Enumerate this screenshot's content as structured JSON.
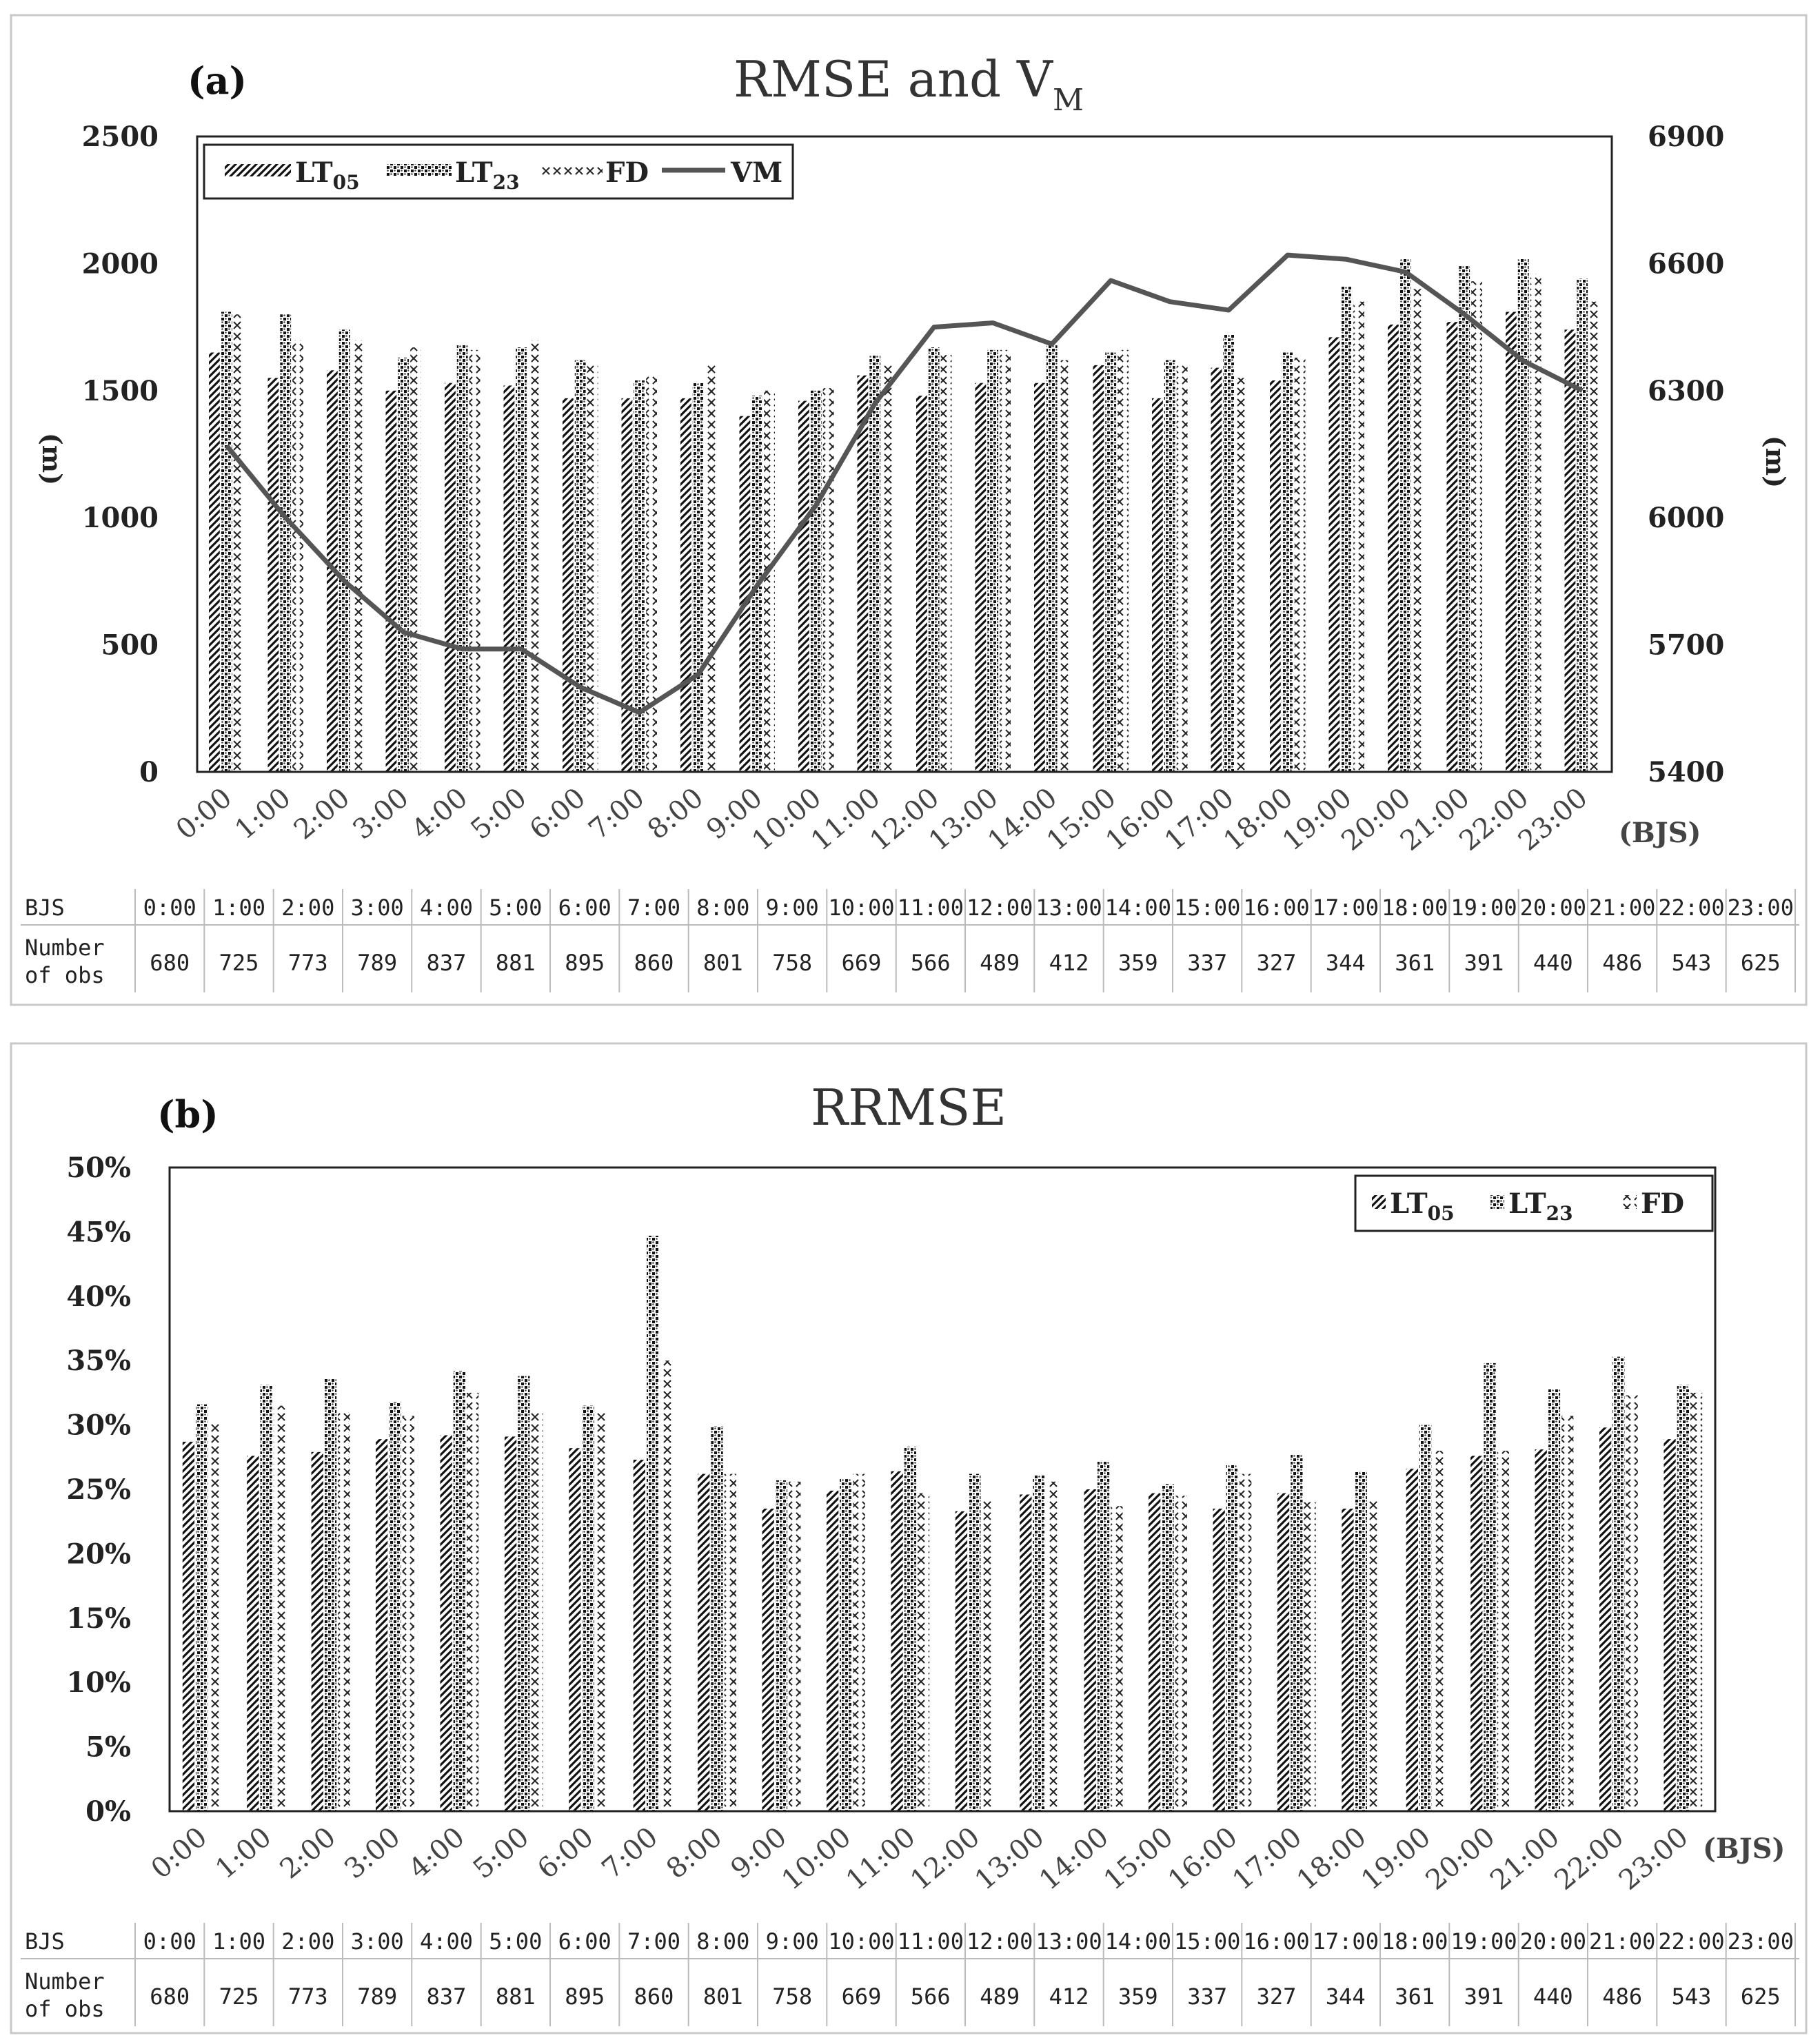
{
  "hours": [
    "0:00",
    "1:00",
    "2:00",
    "3:00",
    "4:00",
    "5:00",
    "6:00",
    "7:00",
    "8:00",
    "9:00",
    "10:00",
    "11:00",
    "12:00",
    "13:00",
    "14:00",
    "15:00",
    "16:00",
    "17:00",
    "18:00",
    "19:00",
    "20:00",
    "21:00",
    "22:00",
    "23:00"
  ],
  "x_unit": "(BJS)",
  "table": {
    "row1_label": "BJS",
    "row2_label_line1": "Number",
    "row2_label_line2": "of obs",
    "counts": [
      "680",
      "725",
      "773",
      "789",
      "837",
      "881",
      "895",
      "860",
      "801",
      "758",
      "669",
      "566",
      "489",
      "412",
      "359",
      "337",
      "327",
      "344",
      "361",
      "391",
      "440",
      "486",
      "543",
      "625"
    ]
  },
  "chart_data": [
    {
      "type": "bar",
      "panel_label": "(a)",
      "title": "RMSE and V",
      "title_subscript": "M",
      "ylabel": "(m)",
      "y2label": "(m)",
      "ylim": [
        0,
        2500
      ],
      "y2lim": [
        5400,
        6900
      ],
      "y_ticks": [
        "0",
        "500",
        "1000",
        "1500",
        "2000",
        "2500"
      ],
      "y2_ticks": [
        "5400",
        "5700",
        "6000",
        "6300",
        "6600",
        "6900"
      ],
      "legend": [
        {
          "name": "LT",
          "sub": "05"
        },
        {
          "name": "LT",
          "sub": "23"
        },
        {
          "name": "FD",
          "sub": ""
        },
        {
          "name": "VM",
          "sub": ""
        }
      ],
      "series": [
        {
          "name": "LT05",
          "values": [
            1650,
            1550,
            1580,
            1500,
            1530,
            1520,
            1470,
            1470,
            1470,
            1400,
            1460,
            1560,
            1480,
            1530,
            1530,
            1600,
            1470,
            1590,
            1540,
            1710,
            1760,
            1770,
            1810,
            1740
          ]
        },
        {
          "name": "LT23",
          "values": [
            1810,
            1800,
            1740,
            1630,
            1680,
            1670,
            1620,
            1540,
            1530,
            1480,
            1500,
            1640,
            1670,
            1660,
            1680,
            1650,
            1620,
            1720,
            1650,
            1910,
            2020,
            1990,
            2020,
            1940
          ]
        },
        {
          "name": "FD",
          "values": [
            1800,
            1700,
            1700,
            1670,
            1660,
            1700,
            1600,
            1560,
            1600,
            1500,
            1510,
            1610,
            1640,
            1660,
            1620,
            1660,
            1600,
            1550,
            1630,
            1850,
            1900,
            1930,
            1960,
            1850
          ]
        }
      ],
      "line": {
        "name": "VM",
        "axis": "right",
        "values": [
          6170,
          6000,
          5850,
          5730,
          5690,
          5690,
          5600,
          5540,
          5630,
          5840,
          6030,
          6270,
          6450,
          6460,
          6410,
          6560,
          6510,
          6490,
          6620,
          6610,
          6580,
          6480,
          6370,
          6300
        ]
      }
    },
    {
      "type": "bar",
      "panel_label": "(b)",
      "title": "RRMSE",
      "ylim": [
        0,
        50
      ],
      "y_ticks": [
        "0%",
        "5%",
        "10%",
        "15%",
        "20%",
        "25%",
        "30%",
        "35%",
        "40%",
        "45%",
        "50%"
      ],
      "legend": [
        {
          "name": "LT",
          "sub": "05"
        },
        {
          "name": "LT",
          "sub": "23"
        },
        {
          "name": "FD",
          "sub": ""
        }
      ],
      "series": [
        {
          "name": "LT05",
          "values": [
            28.7,
            27.6,
            27.9,
            28.9,
            29.2,
            29.1,
            28.2,
            27.3,
            26.2,
            23.5,
            24.9,
            26.4,
            23.3,
            24.6,
            25.0,
            24.7,
            23.5,
            24.7,
            23.5,
            26.6,
            27.6,
            28.1,
            29.8,
            28.9
          ]
        },
        {
          "name": "LT23",
          "values": [
            31.6,
            33.1,
            33.6,
            31.8,
            34.2,
            33.8,
            31.5,
            44.7,
            29.9,
            25.7,
            25.8,
            28.3,
            26.2,
            26.1,
            27.2,
            25.4,
            26.9,
            27.7,
            26.4,
            30.0,
            34.8,
            32.8,
            35.3,
            33.1
          ]
        },
        {
          "name": "FD",
          "values": [
            30.2,
            31.5,
            31.1,
            30.7,
            32.5,
            31.1,
            31.0,
            35.0,
            26.2,
            25.6,
            26.2,
            24.7,
            24.3,
            25.6,
            23.7,
            24.5,
            26.2,
            24.0,
            24.3,
            28.0,
            28.0,
            30.7,
            32.3,
            32.5
          ]
        }
      ]
    }
  ]
}
